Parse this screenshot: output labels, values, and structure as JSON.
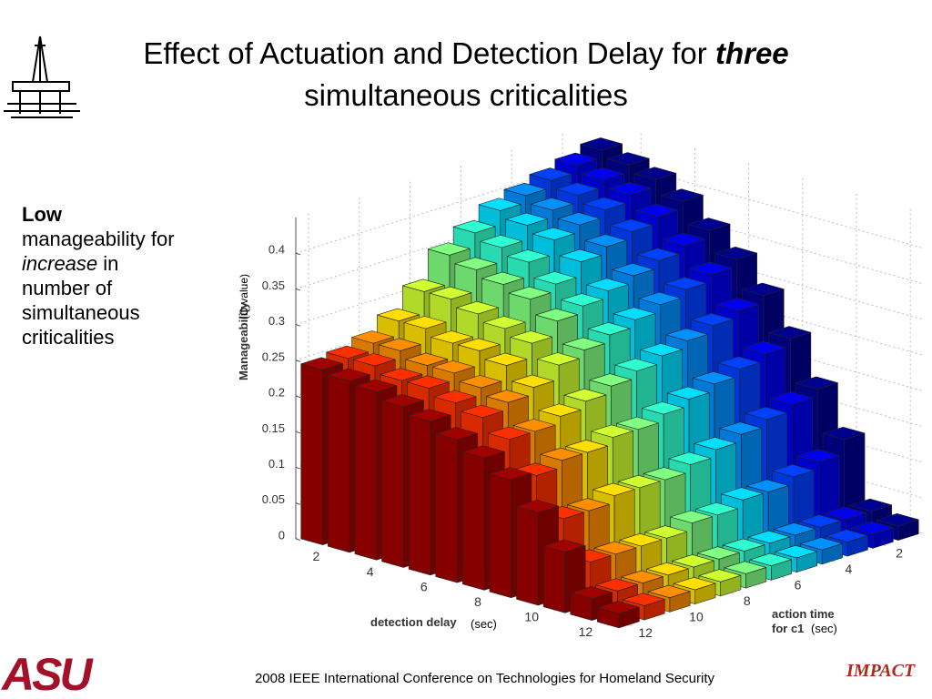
{
  "slide": {
    "title_parts": [
      "Effect of Actuation and Detection Delay for ",
      "three",
      "simultaneous criticalities"
    ],
    "bullet_parts": [
      "Low",
      "manageability for ",
      "increase",
      " in number of simultaneous criticalities"
    ],
    "footer": "2008 IEEE International Conference on Technologies for Homeland Security",
    "logo_left": "ASU",
    "logo_right": "IMPACT"
  },
  "chart_data": {
    "type": "bar3d",
    "zlabel": "Manageability",
    "zlabel_unit": "(Q-value)",
    "xlabel": "detection delay",
    "xlabel_unit": "(sec)",
    "ylabel_lines": [
      "action time",
      "for c1"
    ],
    "ylabel_unit": "(sec)",
    "x": [
      1,
      2,
      3,
      4,
      5,
      6,
      7,
      8,
      9,
      10,
      11,
      12
    ],
    "y": [
      1,
      2,
      3,
      4,
      5,
      6,
      7,
      8,
      9,
      10,
      11,
      12
    ],
    "xlim": [
      0.5,
      12.5
    ],
    "ylim": [
      0.5,
      12.5
    ],
    "zlim": [
      0,
      0.45
    ],
    "xticks": [
      2,
      4,
      6,
      8,
      10,
      12
    ],
    "yticks": [
      2,
      4,
      6,
      8,
      10,
      12
    ],
    "zticks": [
      0,
      0.05,
      0.1,
      0.15,
      0.2,
      0.25,
      0.3,
      0.35,
      0.4
    ],
    "grid": true,
    "series": [
      {
        "color": "#00008f",
        "values": [
          0.43,
          0.42,
          0.41,
          0.39,
          0.36,
          0.33,
          0.29,
          0.24,
          0.18,
          0.12,
          0.03,
          0.02
        ]
      },
      {
        "color": "#0000ef",
        "values": [
          0.42,
          0.41,
          0.4,
          0.38,
          0.35,
          0.32,
          0.28,
          0.23,
          0.17,
          0.1,
          0.03,
          0.02
        ]
      },
      {
        "color": "#0040ff",
        "values": [
          0.41,
          0.4,
          0.39,
          0.37,
          0.34,
          0.31,
          0.27,
          0.22,
          0.16,
          0.09,
          0.03,
          0.02
        ]
      },
      {
        "color": "#0090ff",
        "values": [
          0.4,
          0.39,
          0.38,
          0.36,
          0.33,
          0.3,
          0.26,
          0.21,
          0.15,
          0.08,
          0.03,
          0.02
        ]
      },
      {
        "color": "#00dfff",
        "values": [
          0.39,
          0.38,
          0.37,
          0.35,
          0.32,
          0.29,
          0.25,
          0.2,
          0.14,
          0.08,
          0.03,
          0.02
        ]
      },
      {
        "color": "#30ffcf",
        "values": [
          0.37,
          0.36,
          0.35,
          0.33,
          0.31,
          0.28,
          0.24,
          0.19,
          0.13,
          0.07,
          0.03,
          0.02
        ]
      },
      {
        "color": "#80ff80",
        "values": [
          0.35,
          0.34,
          0.33,
          0.32,
          0.3,
          0.27,
          0.23,
          0.18,
          0.12,
          0.07,
          0.03,
          0.02
        ]
      },
      {
        "color": "#cfff30",
        "values": [
          0.31,
          0.31,
          0.3,
          0.29,
          0.28,
          0.26,
          0.22,
          0.18,
          0.12,
          0.06,
          0.03,
          0.02
        ]
      },
      {
        "color": "#ffdf00",
        "values": [
          0.28,
          0.28,
          0.27,
          0.27,
          0.26,
          0.24,
          0.21,
          0.17,
          0.12,
          0.06,
          0.03,
          0.02
        ]
      },
      {
        "color": "#ff8f00",
        "values": [
          0.26,
          0.26,
          0.25,
          0.25,
          0.24,
          0.23,
          0.2,
          0.17,
          0.11,
          0.06,
          0.03,
          0.02
        ]
      },
      {
        "color": "#ff3000",
        "values": [
          0.25,
          0.25,
          0.24,
          0.24,
          0.23,
          0.22,
          0.2,
          0.16,
          0.11,
          0.06,
          0.03,
          0.02
        ]
      },
      {
        "color": "#9f0000",
        "values": [
          0.245,
          0.24,
          0.235,
          0.225,
          0.215,
          0.2,
          0.185,
          0.165,
          0.13,
          0.085,
          0.03,
          0.02
        ]
      }
    ]
  }
}
